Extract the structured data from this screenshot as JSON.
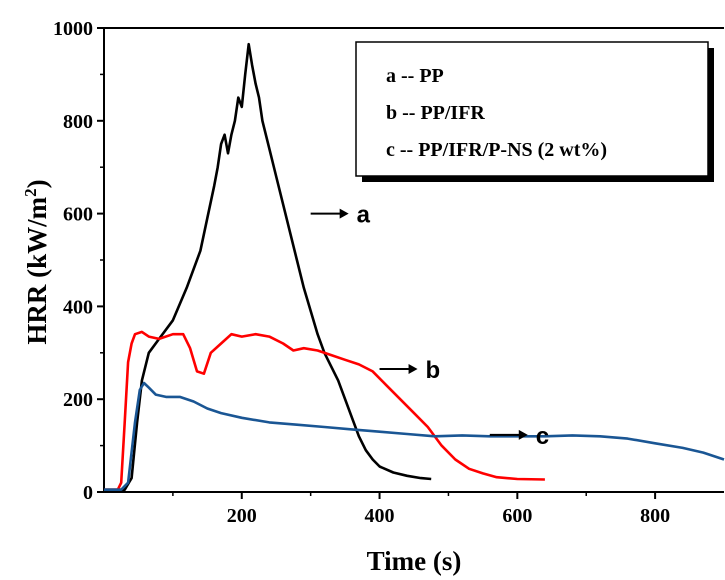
{
  "chart_data": {
    "type": "line",
    "title": "",
    "xlabel": "Time (s)",
    "ylabel_main": "HRR (kW/m",
    "ylabel_sup": "2",
    "ylabel_close": ")",
    "xlim": [
      0,
      900
    ],
    "ylim": [
      0,
      1000
    ],
    "x_ticks": [
      200,
      400,
      600,
      800
    ],
    "y_ticks": [
      0,
      200,
      400,
      600,
      800,
      1000
    ],
    "x_tick_labels": [
      "200",
      "400",
      "600",
      "800"
    ],
    "y_tick_labels": [
      "0",
      "200",
      "400",
      "600",
      "800",
      "1000"
    ],
    "grid": false,
    "legend_position": "top-right",
    "legend": [
      {
        "text": "a -- PP"
      },
      {
        "text": "b -- PP/IFR"
      },
      {
        "text": "c -- PP/IFR/P-NS (2 wt%)"
      }
    ],
    "series": [
      {
        "name": "a",
        "color": "#000000",
        "points": [
          [
            0,
            5
          ],
          [
            30,
            5
          ],
          [
            40,
            30
          ],
          [
            48,
            150
          ],
          [
            55,
            240
          ],
          [
            65,
            300
          ],
          [
            80,
            330
          ],
          [
            100,
            370
          ],
          [
            120,
            440
          ],
          [
            140,
            520
          ],
          [
            150,
            590
          ],
          [
            160,
            660
          ],
          [
            165,
            700
          ],
          [
            170,
            750
          ],
          [
            175,
            770
          ],
          [
            180,
            730
          ],
          [
            185,
            770
          ],
          [
            190,
            800
          ],
          [
            195,
            850
          ],
          [
            200,
            830
          ],
          [
            205,
            900
          ],
          [
            210,
            965
          ],
          [
            215,
            920
          ],
          [
            220,
            880
          ],
          [
            225,
            850
          ],
          [
            230,
            800
          ],
          [
            240,
            740
          ],
          [
            250,
            680
          ],
          [
            260,
            620
          ],
          [
            270,
            560
          ],
          [
            280,
            500
          ],
          [
            290,
            440
          ],
          [
            300,
            390
          ],
          [
            310,
            340
          ],
          [
            320,
            300
          ],
          [
            330,
            270
          ],
          [
            340,
            240
          ],
          [
            350,
            200
          ],
          [
            360,
            160
          ],
          [
            370,
            120
          ],
          [
            380,
            90
          ],
          [
            390,
            70
          ],
          [
            400,
            55
          ],
          [
            420,
            42
          ],
          [
            440,
            35
          ],
          [
            460,
            30
          ],
          [
            475,
            28
          ]
        ]
      },
      {
        "name": "b",
        "color": "#ff0000",
        "points": [
          [
            0,
            5
          ],
          [
            20,
            5
          ],
          [
            25,
            20
          ],
          [
            30,
            150
          ],
          [
            35,
            280
          ],
          [
            40,
            320
          ],
          [
            45,
            340
          ],
          [
            55,
            345
          ],
          [
            65,
            335
          ],
          [
            80,
            330
          ],
          [
            100,
            340
          ],
          [
            115,
            340
          ],
          [
            125,
            310
          ],
          [
            135,
            260
          ],
          [
            145,
            255
          ],
          [
            155,
            300
          ],
          [
            170,
            320
          ],
          [
            185,
            340
          ],
          [
            200,
            335
          ],
          [
            220,
            340
          ],
          [
            240,
            335
          ],
          [
            260,
            320
          ],
          [
            275,
            305
          ],
          [
            290,
            310
          ],
          [
            310,
            305
          ],
          [
            330,
            295
          ],
          [
            350,
            285
          ],
          [
            370,
            275
          ],
          [
            390,
            260
          ],
          [
            410,
            230
          ],
          [
            430,
            200
          ],
          [
            450,
            170
          ],
          [
            470,
            140
          ],
          [
            490,
            100
          ],
          [
            510,
            70
          ],
          [
            530,
            50
          ],
          [
            550,
            40
          ],
          [
            570,
            32
          ],
          [
            600,
            28
          ],
          [
            640,
            27
          ]
        ]
      },
      {
        "name": "c",
        "color": "#1a5694",
        "points": [
          [
            0,
            5
          ],
          [
            25,
            5
          ],
          [
            35,
            20
          ],
          [
            45,
            150
          ],
          [
            52,
            220
          ],
          [
            58,
            235
          ],
          [
            65,
            225
          ],
          [
            75,
            210
          ],
          [
            90,
            205
          ],
          [
            110,
            205
          ],
          [
            130,
            195
          ],
          [
            150,
            180
          ],
          [
            170,
            170
          ],
          [
            200,
            160
          ],
          [
            240,
            150
          ],
          [
            280,
            145
          ],
          [
            320,
            140
          ],
          [
            360,
            135
          ],
          [
            400,
            130
          ],
          [
            440,
            125
          ],
          [
            480,
            120
          ],
          [
            520,
            122
          ],
          [
            560,
            120
          ],
          [
            600,
            120
          ],
          [
            640,
            120
          ],
          [
            680,
            122
          ],
          [
            720,
            120
          ],
          [
            760,
            115
          ],
          [
            800,
            105
          ],
          [
            840,
            95
          ],
          [
            870,
            85
          ],
          [
            900,
            70
          ]
        ]
      }
    ],
    "callouts": [
      {
        "label": "a",
        "series": "a",
        "tip": [
          300,
          600
        ]
      },
      {
        "label": "b",
        "series": "b",
        "tip": [
          400,
          265
        ]
      },
      {
        "label": "c",
        "series": "c",
        "tip": [
          560,
          123
        ]
      }
    ]
  }
}
